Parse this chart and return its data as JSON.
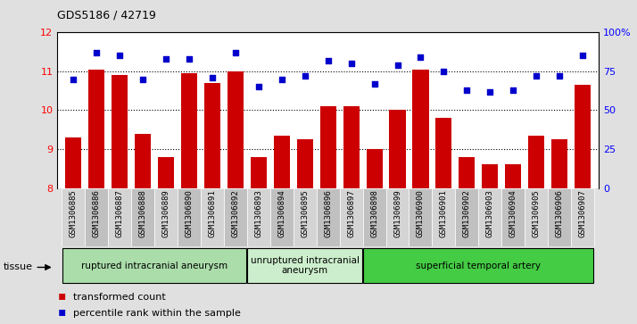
{
  "title": "GDS5186 / 42719",
  "samples": [
    "GSM1306885",
    "GSM1306886",
    "GSM1306887",
    "GSM1306888",
    "GSM1306889",
    "GSM1306890",
    "GSM1306891",
    "GSM1306892",
    "GSM1306893",
    "GSM1306894",
    "GSM1306895",
    "GSM1306896",
    "GSM1306897",
    "GSM1306898",
    "GSM1306899",
    "GSM1306900",
    "GSM1306901",
    "GSM1306902",
    "GSM1306903",
    "GSM1306904",
    "GSM1306905",
    "GSM1306906",
    "GSM1306907"
  ],
  "bar_values": [
    9.3,
    11.05,
    10.9,
    9.4,
    8.8,
    10.95,
    10.7,
    11.0,
    8.8,
    9.35,
    9.25,
    10.1,
    10.1,
    9.0,
    10.0,
    11.05,
    9.8,
    8.8,
    8.6,
    8.6,
    9.35,
    9.25,
    10.65
  ],
  "dot_values_pct": [
    70,
    87,
    85,
    70,
    83,
    83,
    71,
    87,
    65,
    70,
    72,
    82,
    80,
    67,
    79,
    84,
    75,
    63,
    62,
    63,
    72,
    72,
    85
  ],
  "ylim_left": [
    8,
    12
  ],
  "ylim_right": [
    0,
    100
  ],
  "yticks_left": [
    8,
    9,
    10,
    11,
    12
  ],
  "yticks_right": [
    0,
    25,
    50,
    75,
    100
  ],
  "bar_color": "#CC0000",
  "dot_color": "#0000CC",
  "background_color": "#E0E0E0",
  "plot_bg": "#FFFFFF",
  "groups": [
    {
      "label": "ruptured intracranial aneurysm",
      "start": 0,
      "end": 7,
      "color": "#AADDAA"
    },
    {
      "label": "unruptured intracranial\naneurysm",
      "start": 8,
      "end": 12,
      "color": "#CCEECC"
    },
    {
      "label": "superficial temporal artery",
      "start": 13,
      "end": 22,
      "color": "#44CC44"
    }
  ],
  "tick_bg_light": "#D4D4D4",
  "tick_bg_dark": "#C0C0C0"
}
